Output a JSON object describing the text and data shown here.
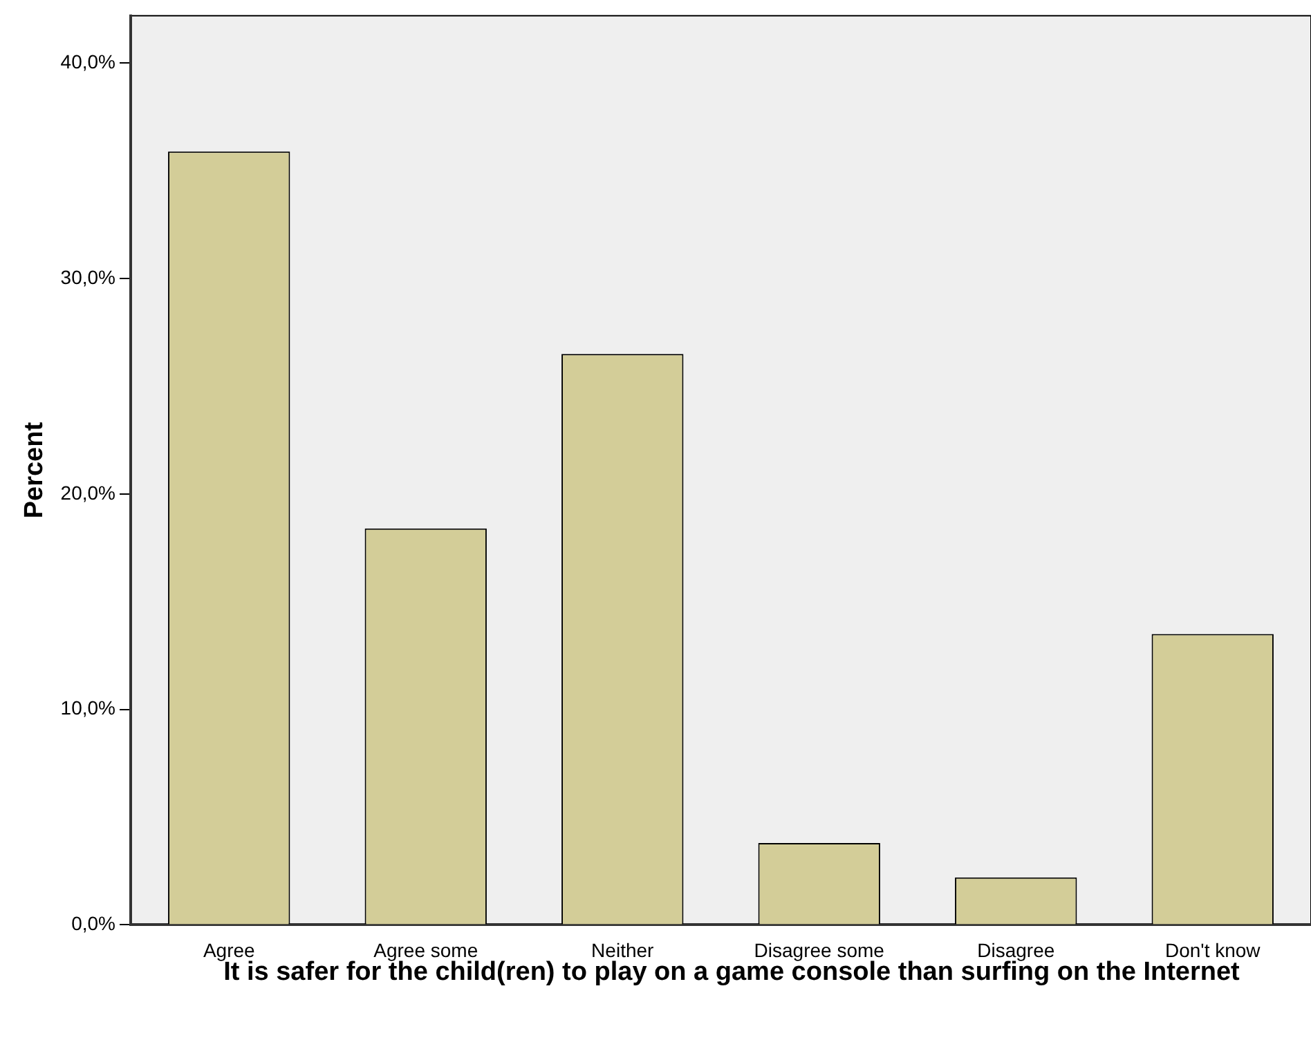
{
  "chart_data": {
    "type": "bar",
    "xlabel": "It is safer for the child(ren) to play on a game console than surfing on the Internet",
    "ylabel": "Percent",
    "categories": [
      "Agree",
      "Agree some",
      "Neither",
      "Disagree some",
      "Disagree",
      "Don't know"
    ],
    "values": [
      35.9,
      18.4,
      26.5,
      3.8,
      2.2,
      13.5
    ],
    "color": "#d3cd98",
    "ylim": [
      0,
      42.2
    ],
    "yticks": [
      {
        "value": 0,
        "label": "0,0%"
      },
      {
        "value": 10,
        "label": "10,0%"
      },
      {
        "value": 20,
        "label": "20,0%"
      },
      {
        "value": 30,
        "label": "30,0%"
      },
      {
        "value": 40,
        "label": "40,0%"
      }
    ],
    "grid": false,
    "legend": false
  }
}
